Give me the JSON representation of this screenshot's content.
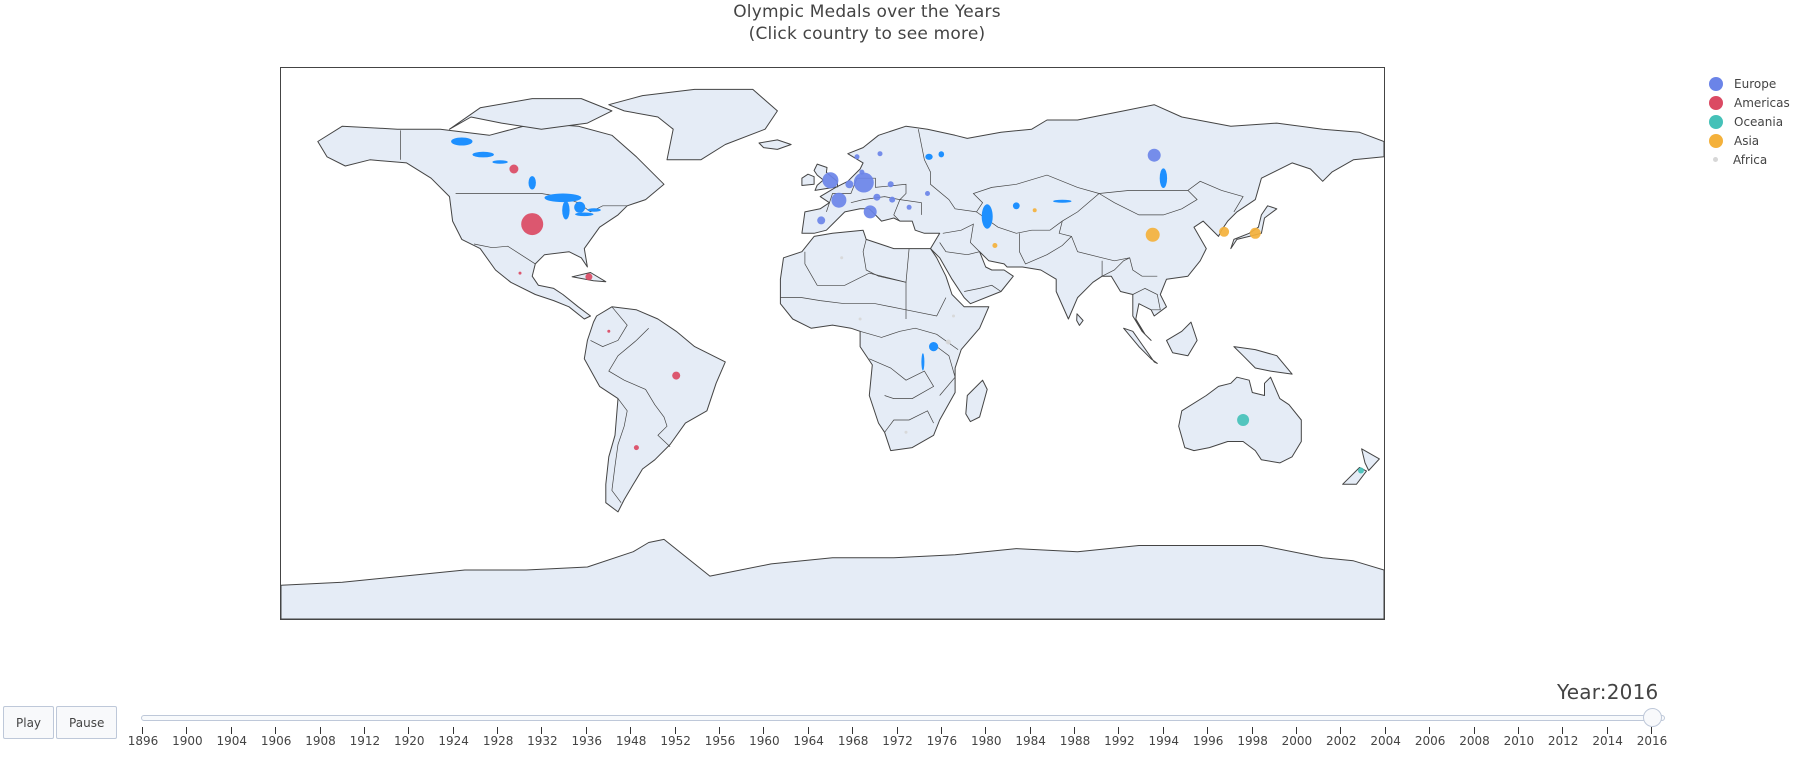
{
  "title": {
    "line1": "Olympic Medals over the Years",
    "line2": "(Click country to see more)"
  },
  "legend": [
    {
      "name": "Europe",
      "color": "#6b84e8"
    },
    {
      "name": "Americas",
      "color": "#db4a63"
    },
    {
      "name": "Oceania",
      "color": "#45c1b8"
    },
    {
      "name": "Asia",
      "color": "#f4b13b"
    },
    {
      "name": "Africa",
      "color": "#d7d7d7"
    }
  ],
  "controls": {
    "play": "Play",
    "pause": "Pause"
  },
  "slider": {
    "prefix": "Year:",
    "current": "2016",
    "years": [
      "1896",
      "1900",
      "1904",
      "1906",
      "1908",
      "1912",
      "1920",
      "1924",
      "1928",
      "1932",
      "1936",
      "1948",
      "1952",
      "1956",
      "1960",
      "1964",
      "1968",
      "1972",
      "1976",
      "1980",
      "1984",
      "1988",
      "1992",
      "1994",
      "1996",
      "1998",
      "2000",
      "2002",
      "2004",
      "2006",
      "2008",
      "2010",
      "2012",
      "2014",
      "2016"
    ]
  },
  "chart_data": {
    "type": "scatter",
    "title": "Olympic Medals over the Years\n(Click country to see more)",
    "legend_position": "top-right",
    "map": {
      "land_color": "#e5ecf6",
      "coastline_color": "#444444",
      "lake_color": "#1e90ff"
    },
    "series": [
      {
        "name": "Europe",
        "color": "#6b84e8",
        "points": [
          {
            "x": -0.7,
            "y": 53.3,
            "size": 16
          },
          {
            "x": 10.2,
            "y": 52.6,
            "size": 20
          },
          {
            "x": 2.1,
            "y": 46.8,
            "size": 15
          },
          {
            "x": 12.3,
            "y": 43.0,
            "size": 13
          },
          {
            "x": 105.0,
            "y": 61.5,
            "size": 13
          },
          {
            "x": -3.7,
            "y": 40.2,
            "size": 8
          },
          {
            "x": 5.5,
            "y": 52.0,
            "size": 8
          },
          {
            "x": 14.5,
            "y": 47.8,
            "size": 7
          },
          {
            "x": 19.5,
            "y": 47.0,
            "size": 6
          },
          {
            "x": 19.0,
            "y": 52.0,
            "size": 6
          },
          {
            "x": 9.6,
            "y": 56.0,
            "size": 5
          },
          {
            "x": 15.5,
            "y": 62.0,
            "size": 5
          },
          {
            "x": 8.0,
            "y": 61.0,
            "size": 5
          },
          {
            "x": 25.0,
            "y": 44.5,
            "size": 5
          },
          {
            "x": 31.0,
            "y": 49.0,
            "size": 5
          }
        ]
      },
      {
        "name": "Americas",
        "color": "#db4a63",
        "points": [
          {
            "x": -98.0,
            "y": 39.0,
            "size": 22
          },
          {
            "x": -104.0,
            "y": 57.0,
            "size": 9
          },
          {
            "x": -79.5,
            "y": 21.8,
            "size": 7
          },
          {
            "x": -51.0,
            "y": -10.5,
            "size": 8
          },
          {
            "x": -64.0,
            "y": -34.0,
            "size": 5
          },
          {
            "x": -102.0,
            "y": 23.0,
            "size": 3
          },
          {
            "x": -73.0,
            "y": 4.0,
            "size": 3
          }
        ]
      },
      {
        "name": "Oceania",
        "color": "#45c1b8",
        "points": [
          {
            "x": 134.0,
            "y": -25.0,
            "size": 12
          },
          {
            "x": 172.5,
            "y": -41.5,
            "size": 6
          }
        ]
      },
      {
        "name": "Asia",
        "color": "#f4b13b",
        "points": [
          {
            "x": 104.5,
            "y": 35.5,
            "size": 14
          },
          {
            "x": 138.0,
            "y": 36.0,
            "size": 11
          },
          {
            "x": 127.8,
            "y": 36.5,
            "size": 10
          },
          {
            "x": 66.0,
            "y": 43.5,
            "size": 4
          },
          {
            "x": 53.0,
            "y": 32.0,
            "size": 5
          }
        ]
      },
      {
        "name": "Africa",
        "color": "#d7d7d7",
        "points": [
          {
            "x": 37.8,
            "y": 0.5,
            "size": 5
          },
          {
            "x": 39.5,
            "y": 9.0,
            "size": 3
          },
          {
            "x": 9.0,
            "y": 8.0,
            "size": 3
          },
          {
            "x": 24.0,
            "y": -29.0,
            "size": 3
          },
          {
            "x": 3.0,
            "y": 28.0,
            "size": 3
          }
        ]
      }
    ]
  }
}
